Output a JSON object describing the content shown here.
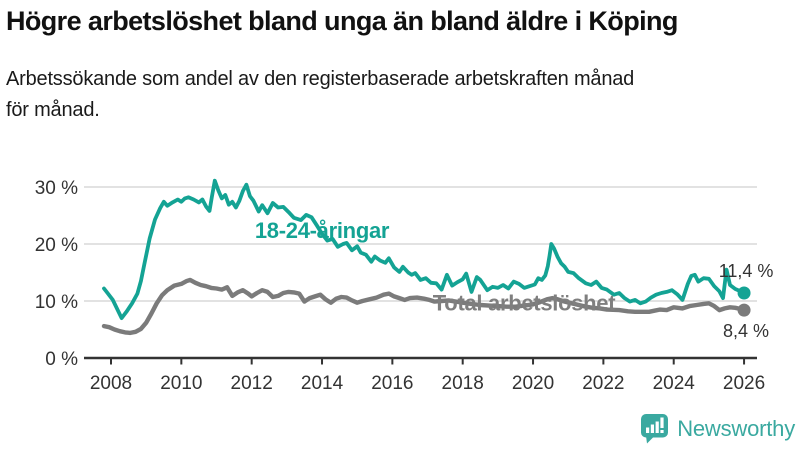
{
  "header": {
    "title": "Högre arbetslöshet bland unga än bland äldre i Köping",
    "subtitle": "Arbetssökande som andel av den registerbaserade arbetskraften månad\nför månad."
  },
  "colors": {
    "youth_line": "#14a394",
    "total_line": "#7b7b7b",
    "axis_text": "#333333",
    "gridline": "#d8d8d8",
    "axis_line": "#333333",
    "end_label_text": "#333333",
    "brand": "#3aa9a0"
  },
  "chart_data": {
    "type": "line",
    "title": "",
    "xlabel": "",
    "ylabel": "",
    "grid": true,
    "x_axis": {
      "tick_values": [
        2008,
        2010,
        2012,
        2014,
        2016,
        2018,
        2020,
        2022,
        2024,
        2026
      ],
      "tick_labels": [
        "2008",
        "2010",
        "2012",
        "2014",
        "2016",
        "2018",
        "2020",
        "2022",
        "2024",
        "2026"
      ],
      "range": [
        2007.7,
        2026.4
      ]
    },
    "y_axis": {
      "tick_values": [
        0,
        10,
        20,
        30
      ],
      "tick_labels": [
        "0 %",
        "10 %",
        "20 %",
        "30 %"
      ],
      "range": [
        0,
        33
      ],
      "unit": "%"
    },
    "annotations": [
      {
        "text": "18-24-åringar",
        "x": 2014.0,
        "y": 22.3,
        "color": "#14a394",
        "anchor": "middle"
      },
      {
        "text": "Total arbetslöshet",
        "x": 2017.15,
        "y": 9.6,
        "color": "#7f7f7f",
        "anchor": "start"
      }
    ],
    "series": [
      {
        "name": "18-24-åringar",
        "color": "#14a394",
        "end_label": "11,4 %",
        "end_value": 11.4,
        "points": [
          [
            2007.8,
            12.2
          ],
          [
            2007.9,
            11.4
          ],
          [
            2008.05,
            10.2
          ],
          [
            2008.2,
            8.3
          ],
          [
            2008.3,
            7.0
          ],
          [
            2008.45,
            8.2
          ],
          [
            2008.6,
            9.6
          ],
          [
            2008.75,
            11.3
          ],
          [
            2008.85,
            13.5
          ],
          [
            2008.95,
            16.5
          ],
          [
            2009.1,
            21.0
          ],
          [
            2009.25,
            24.3
          ],
          [
            2009.4,
            26.3
          ],
          [
            2009.5,
            27.4
          ],
          [
            2009.6,
            26.7
          ],
          [
            2009.75,
            27.3
          ],
          [
            2009.9,
            27.8
          ],
          [
            2010.0,
            27.4
          ],
          [
            2010.1,
            28.0
          ],
          [
            2010.2,
            28.2
          ],
          [
            2010.35,
            27.8
          ],
          [
            2010.5,
            27.3
          ],
          [
            2010.6,
            27.8
          ],
          [
            2010.7,
            26.6
          ],
          [
            2010.8,
            25.8
          ],
          [
            2010.87,
            28.3
          ],
          [
            2010.95,
            31.1
          ],
          [
            2011.05,
            29.4
          ],
          [
            2011.15,
            28.0
          ],
          [
            2011.25,
            28.6
          ],
          [
            2011.35,
            26.9
          ],
          [
            2011.45,
            27.4
          ],
          [
            2011.55,
            26.4
          ],
          [
            2011.65,
            27.6
          ],
          [
            2011.75,
            29.3
          ],
          [
            2011.85,
            30.4
          ],
          [
            2011.95,
            28.4
          ],
          [
            2012.05,
            27.6
          ],
          [
            2012.2,
            25.7
          ],
          [
            2012.3,
            26.8
          ],
          [
            2012.45,
            25.4
          ],
          [
            2012.6,
            27.2
          ],
          [
            2012.75,
            26.4
          ],
          [
            2012.9,
            26.5
          ],
          [
            2013.05,
            25.6
          ],
          [
            2013.2,
            24.6
          ],
          [
            2013.4,
            24.2
          ],
          [
            2013.55,
            25.1
          ],
          [
            2013.7,
            24.7
          ],
          [
            2013.85,
            23.3
          ],
          [
            2014.0,
            21.8
          ],
          [
            2014.15,
            20.6
          ],
          [
            2014.3,
            20.9
          ],
          [
            2014.45,
            19.5
          ],
          [
            2014.6,
            20.0
          ],
          [
            2014.7,
            20.2
          ],
          [
            2014.85,
            18.9
          ],
          [
            2015.0,
            19.6
          ],
          [
            2015.1,
            18.5
          ],
          [
            2015.25,
            18.1
          ],
          [
            2015.4,
            16.9
          ],
          [
            2015.5,
            17.8
          ],
          [
            2015.65,
            17.1
          ],
          [
            2015.8,
            16.7
          ],
          [
            2015.9,
            17.5
          ],
          [
            2016.05,
            15.9
          ],
          [
            2016.2,
            15.1
          ],
          [
            2016.3,
            16.0
          ],
          [
            2016.45,
            15.0
          ],
          [
            2016.55,
            14.6
          ],
          [
            2016.65,
            14.9
          ],
          [
            2016.8,
            13.7
          ],
          [
            2016.95,
            14.0
          ],
          [
            2017.1,
            13.2
          ],
          [
            2017.25,
            13.1
          ],
          [
            2017.4,
            12.0
          ],
          [
            2017.55,
            14.6
          ],
          [
            2017.7,
            12.7
          ],
          [
            2017.85,
            13.3
          ],
          [
            2018.0,
            13.8
          ],
          [
            2018.1,
            14.8
          ],
          [
            2018.25,
            11.6
          ],
          [
            2018.4,
            14.2
          ],
          [
            2018.5,
            13.7
          ],
          [
            2018.7,
            11.9
          ],
          [
            2018.85,
            12.5
          ],
          [
            2019.0,
            12.3
          ],
          [
            2019.15,
            12.8
          ],
          [
            2019.3,
            12.2
          ],
          [
            2019.45,
            13.4
          ],
          [
            2019.6,
            13.0
          ],
          [
            2019.75,
            12.3
          ],
          [
            2019.9,
            12.6
          ],
          [
            2020.05,
            12.9
          ],
          [
            2020.15,
            14.0
          ],
          [
            2020.25,
            13.7
          ],
          [
            2020.35,
            14.5
          ],
          [
            2020.42,
            16.1
          ],
          [
            2020.47,
            18.0
          ],
          [
            2020.52,
            20.0
          ],
          [
            2020.6,
            19.2
          ],
          [
            2020.7,
            17.7
          ],
          [
            2020.8,
            16.6
          ],
          [
            2020.9,
            16.0
          ],
          [
            2021.0,
            15.1
          ],
          [
            2021.15,
            14.9
          ],
          [
            2021.3,
            14.0
          ],
          [
            2021.5,
            13.1
          ],
          [
            2021.65,
            12.8
          ],
          [
            2021.8,
            13.4
          ],
          [
            2021.95,
            12.3
          ],
          [
            2022.1,
            12.0
          ],
          [
            2022.3,
            11.1
          ],
          [
            2022.45,
            11.4
          ],
          [
            2022.6,
            10.5
          ],
          [
            2022.75,
            9.9
          ],
          [
            2022.9,
            10.2
          ],
          [
            2023.05,
            9.6
          ],
          [
            2023.2,
            9.9
          ],
          [
            2023.35,
            10.6
          ],
          [
            2023.5,
            11.1
          ],
          [
            2023.65,
            11.4
          ],
          [
            2023.8,
            11.6
          ],
          [
            2023.95,
            11.9
          ],
          [
            2024.1,
            11.2
          ],
          [
            2024.25,
            10.2
          ],
          [
            2024.4,
            13.0
          ],
          [
            2024.5,
            14.4
          ],
          [
            2024.6,
            14.6
          ],
          [
            2024.7,
            13.4
          ],
          [
            2024.85,
            14.0
          ],
          [
            2025.0,
            13.9
          ],
          [
            2025.15,
            12.6
          ],
          [
            2025.3,
            11.7
          ],
          [
            2025.4,
            10.5
          ],
          [
            2025.5,
            15.5
          ],
          [
            2025.6,
            12.8
          ],
          [
            2025.75,
            12.1
          ],
          [
            2025.9,
            11.7
          ],
          [
            2026.0,
            11.4
          ]
        ]
      },
      {
        "name": "Total arbetslöshet",
        "color": "#7b7b7b",
        "end_label": "8,4 %",
        "end_value": 8.4,
        "points": [
          [
            2007.8,
            5.6
          ],
          [
            2007.95,
            5.4
          ],
          [
            2008.1,
            5.0
          ],
          [
            2008.25,
            4.7
          ],
          [
            2008.4,
            4.5
          ],
          [
            2008.55,
            4.4
          ],
          [
            2008.7,
            4.6
          ],
          [
            2008.85,
            5.1
          ],
          [
            2009.0,
            6.2
          ],
          [
            2009.15,
            7.8
          ],
          [
            2009.3,
            9.6
          ],
          [
            2009.45,
            11.0
          ],
          [
            2009.6,
            11.9
          ],
          [
            2009.8,
            12.7
          ],
          [
            2010.0,
            13.0
          ],
          [
            2010.15,
            13.5
          ],
          [
            2010.25,
            13.7
          ],
          [
            2010.4,
            13.2
          ],
          [
            2010.55,
            12.8
          ],
          [
            2010.7,
            12.6
          ],
          [
            2010.85,
            12.3
          ],
          [
            2011.0,
            12.2
          ],
          [
            2011.15,
            12.0
          ],
          [
            2011.3,
            12.4
          ],
          [
            2011.45,
            10.9
          ],
          [
            2011.6,
            11.5
          ],
          [
            2011.75,
            11.9
          ],
          [
            2011.9,
            11.3
          ],
          [
            2012.0,
            10.8
          ],
          [
            2012.15,
            11.4
          ],
          [
            2012.3,
            11.9
          ],
          [
            2012.45,
            11.6
          ],
          [
            2012.6,
            10.7
          ],
          [
            2012.75,
            10.9
          ],
          [
            2012.9,
            11.4
          ],
          [
            2013.05,
            11.6
          ],
          [
            2013.2,
            11.5
          ],
          [
            2013.35,
            11.3
          ],
          [
            2013.5,
            9.9
          ],
          [
            2013.65,
            10.5
          ],
          [
            2013.8,
            10.8
          ],
          [
            2013.95,
            11.1
          ],
          [
            2014.1,
            10.3
          ],
          [
            2014.25,
            9.7
          ],
          [
            2014.4,
            10.4
          ],
          [
            2014.55,
            10.7
          ],
          [
            2014.7,
            10.6
          ],
          [
            2014.85,
            10.1
          ],
          [
            2015.0,
            9.7
          ],
          [
            2015.15,
            10.0
          ],
          [
            2015.35,
            10.3
          ],
          [
            2015.55,
            10.6
          ],
          [
            2015.75,
            11.1
          ],
          [
            2015.9,
            11.3
          ],
          [
            2016.05,
            10.8
          ],
          [
            2016.2,
            10.5
          ],
          [
            2016.35,
            10.2
          ],
          [
            2016.5,
            10.5
          ],
          [
            2016.7,
            10.6
          ],
          [
            2016.9,
            10.4
          ],
          [
            2017.05,
            10.2
          ],
          [
            2017.2,
            9.9
          ],
          [
            2017.4,
            10.0
          ],
          [
            2017.6,
            10.1
          ],
          [
            2017.8,
            9.9
          ],
          [
            2018.0,
            9.7
          ],
          [
            2018.25,
            9.5
          ],
          [
            2018.5,
            9.3
          ],
          [
            2018.75,
            9.2
          ],
          [
            2019.0,
            9.1
          ],
          [
            2019.25,
            9.0
          ],
          [
            2019.5,
            9.0
          ],
          [
            2019.75,
            9.2
          ],
          [
            2020.0,
            9.4
          ],
          [
            2020.2,
            9.8
          ],
          [
            2020.4,
            10.3
          ],
          [
            2020.55,
            10.5
          ],
          [
            2020.7,
            10.3
          ],
          [
            2020.9,
            9.9
          ],
          [
            2021.1,
            9.6
          ],
          [
            2021.3,
            9.3
          ],
          [
            2021.5,
            9.0
          ],
          [
            2021.7,
            8.8
          ],
          [
            2021.9,
            8.7
          ],
          [
            2022.1,
            8.5
          ],
          [
            2022.45,
            8.4
          ],
          [
            2022.7,
            8.2
          ],
          [
            2022.9,
            8.1
          ],
          [
            2023.1,
            8.1
          ],
          [
            2023.3,
            8.1
          ],
          [
            2023.45,
            8.3
          ],
          [
            2023.6,
            8.5
          ],
          [
            2023.8,
            8.4
          ],
          [
            2024.0,
            8.9
          ],
          [
            2024.25,
            8.7
          ],
          [
            2024.45,
            9.1
          ],
          [
            2024.65,
            9.3
          ],
          [
            2024.85,
            9.5
          ],
          [
            2025.0,
            9.6
          ],
          [
            2025.15,
            9.1
          ],
          [
            2025.3,
            8.4
          ],
          [
            2025.45,
            8.7
          ],
          [
            2025.6,
            8.9
          ],
          [
            2025.75,
            8.8
          ],
          [
            2025.9,
            8.6
          ],
          [
            2026.0,
            8.4
          ]
        ]
      }
    ]
  },
  "footer": {
    "brand": "Newsworthy",
    "logo_icon": "bar-chart-speech-bubble-icon"
  }
}
